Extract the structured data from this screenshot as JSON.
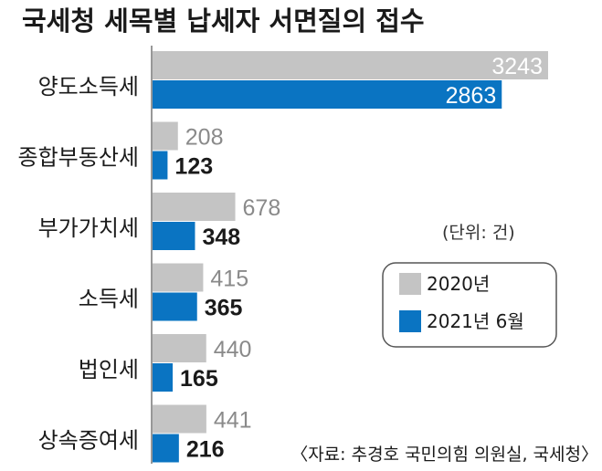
{
  "chart_data": {
    "type": "bar",
    "orientation": "horizontal",
    "title": "국세청 세목별 납세자 서면질의 접수",
    "unit": "(단위: 건)",
    "source": "〈자료: 추경호 국민의힘 의원실, 국세청〉",
    "categories": [
      "양도소득세",
      "종합부동산세",
      "부가가치세",
      "소득세",
      "법인세",
      "상속증여세"
    ],
    "series": [
      {
        "name": "2020년",
        "color": "#c4c4c4",
        "values": [
          3243,
          208,
          678,
          415,
          440,
          441
        ]
      },
      {
        "name": "2021년 6월",
        "color": "#0a74c2",
        "values": [
          2863,
          123,
          348,
          365,
          165,
          216
        ]
      }
    ],
    "xlim": [
      0,
      3243
    ],
    "grid": false,
    "legend_position": "right"
  }
}
